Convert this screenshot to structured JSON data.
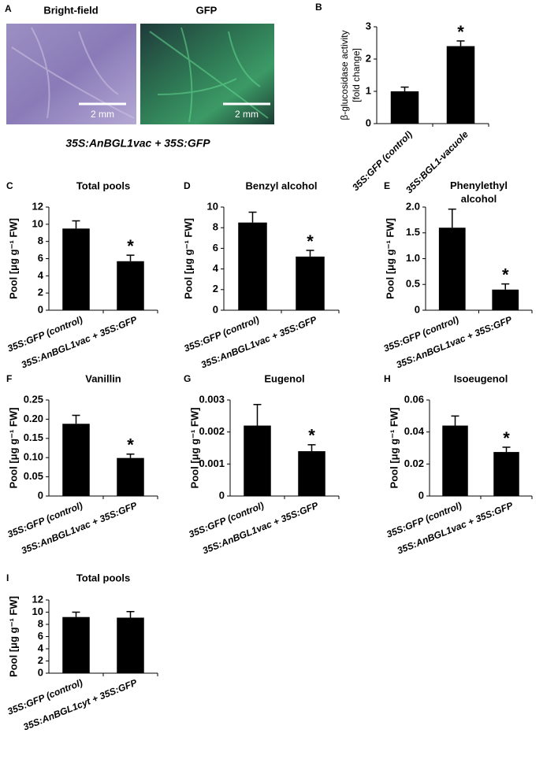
{
  "panel_a": {
    "label": "A",
    "images": [
      {
        "title": "Bright-field",
        "scale_bar": "2 mm"
      },
      {
        "title": "GFP",
        "scale_bar": "2 mm"
      }
    ],
    "caption": "35S:AnBGL1vac + 35S:GFP"
  },
  "chart_data": [
    {
      "type": "bar",
      "panel": "B",
      "ylabel": [
        "β-glucosidase activity",
        "[fold change]"
      ],
      "categories": [
        "35S:GFP (control)",
        "35S:BGL1-vacuole"
      ],
      "values": [
        1.0,
        2.4
      ],
      "errors": [
        0.13,
        0.16
      ],
      "color": "#000000",
      "ylim": [
        0,
        3
      ],
      "yticks": [
        0,
        1,
        2,
        3
      ],
      "annotation": "*"
    },
    {
      "type": "bar",
      "panel": "C",
      "title": "Total pools",
      "ylabel": "Pool [μg g⁻¹ FW]",
      "categories": [
        "35S:GFP (control)",
        "35S:AnBGL1vac + 35S:GFP"
      ],
      "values": [
        9.5,
        5.7
      ],
      "errors": [
        0.9,
        0.7
      ],
      "color": "#000000",
      "ylim": [
        0,
        12
      ],
      "yticks": [
        0,
        2,
        4,
        6,
        8,
        10,
        12
      ],
      "annotation": "*"
    },
    {
      "type": "bar",
      "panel": "D",
      "title": "Benzyl alcohol",
      "ylabel": "Pool [μg g⁻¹ FW]",
      "categories": [
        "35S:GFP (control)",
        "35S:AnBGL1vac + 35S:GFP"
      ],
      "values": [
        8.5,
        5.2
      ],
      "errors": [
        1.0,
        0.6
      ],
      "color": "#000000",
      "ylim": [
        0,
        10
      ],
      "yticks": [
        0,
        2,
        4,
        6,
        8,
        10
      ],
      "annotation": "*"
    },
    {
      "type": "bar",
      "panel": "E",
      "title": "Phenylethyl alcohol",
      "ylabel": "Pool [μg g⁻¹ FW]",
      "categories": [
        "35S:GFP (control)",
        "35S:AnBGL1vac + 35S:GFP"
      ],
      "values": [
        1.6,
        0.4
      ],
      "errors": [
        0.36,
        0.11
      ],
      "color": "#000000",
      "ylim": [
        0,
        2
      ],
      "yticks": [
        0,
        0.5,
        {
          "value": 1,
          "label": "1.0"
        },
        1.5,
        {
          "value": 2,
          "label": "2.0"
        }
      ],
      "annotation": "*"
    },
    {
      "type": "bar",
      "panel": "F",
      "title": "Vanillin",
      "ylabel": "Pool [μg g⁻¹ FW]",
      "categories": [
        "35S:GFP (control)",
        "35S:AnBGL1vac + 35S:GFP"
      ],
      "values": [
        0.188,
        0.099
      ],
      "errors": [
        0.022,
        0.01
      ],
      "color": "#000000",
      "ylim": [
        0,
        0.25
      ],
      "yticks": [
        0,
        0.05,
        {
          "value": 0.1,
          "label": "0.10"
        },
        0.15,
        {
          "value": 0.2,
          "label": "0.20"
        },
        0.25
      ],
      "annotation": "*"
    },
    {
      "type": "bar",
      "panel": "G",
      "title": "Eugenol",
      "ylabel": "Pool [μg g⁻¹ FW]",
      "categories": [
        "35S:GFP (control)",
        "35S:AnBGL1vac + 35S:GFP"
      ],
      "values": [
        0.0022,
        0.0014
      ],
      "errors": [
        0.00066,
        0.0002
      ],
      "color": "#000000",
      "ylim": [
        0,
        0.003
      ],
      "yticks": [
        0,
        0.001,
        0.002,
        0.003
      ],
      "annotation": "*"
    },
    {
      "type": "bar",
      "panel": "H",
      "title": "Isoeugenol",
      "ylabel": "Pool [μg g⁻¹ FW]",
      "categories": [
        "35S:GFP (control)",
        "35S:AnBGL1vac + 35S:GFP"
      ],
      "values": [
        0.044,
        0.0275
      ],
      "errors": [
        0.006,
        0.003
      ],
      "color": "#000000",
      "ylim": [
        0,
        0.06
      ],
      "yticks": [
        0,
        0.02,
        0.04,
        0.06
      ],
      "annotation": "*"
    },
    {
      "type": "bar",
      "panel": "I",
      "title": "Total pools",
      "ylabel": "Pool [μg g⁻¹ FW]",
      "categories": [
        "35S:GFP (control)",
        "35S:AnBGL1cyt + 35S:GFP"
      ],
      "values": [
        9.2,
        9.1
      ],
      "errors": [
        0.8,
        1.0
      ],
      "color": "#000000",
      "ylim": [
        0,
        12
      ],
      "yticks": [
        0,
        2,
        4,
        6,
        8,
        10,
        12
      ]
    }
  ]
}
